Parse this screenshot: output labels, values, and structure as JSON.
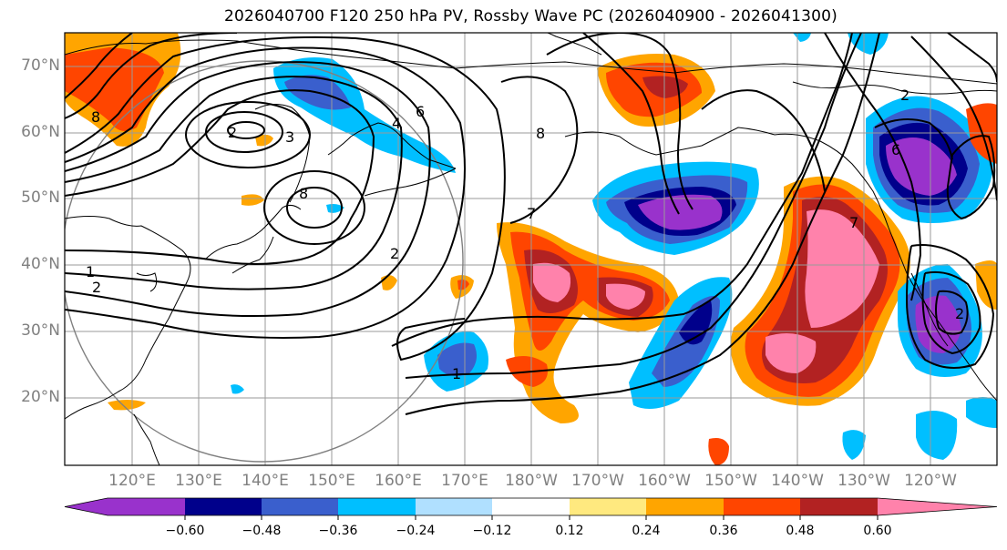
{
  "title": "2026040700 F120 250 hPa PV, Rossby Wave PC (2026040900 - 2026041300)",
  "lat_labels": [
    "70°N",
    "60°N",
    "50°N",
    "40°N",
    "30°N",
    "20°N"
  ],
  "lon_labels": [
    "120°E",
    "130°E",
    "140°E",
    "150°E",
    "160°E",
    "170°E",
    "180°W",
    "170°W",
    "160°W",
    "150°W",
    "140°W",
    "130°W",
    "120°W"
  ],
  "colorbar": {
    "ticks": [
      "−0.60",
      "−0.48",
      "−0.36",
      "−0.24",
      "−0.12",
      "0.12",
      "0.24",
      "0.36",
      "0.48",
      "0.60"
    ],
    "colors": [
      "#9932cc",
      "#00008b",
      "#3a5fcd",
      "#00bfff",
      "#b0e0ff",
      "#ffffff",
      "#ffe97f",
      "#ffa500",
      "#ff4500",
      "#b22222",
      "#ff82ab"
    ]
  },
  "contour_labels": [
    "8",
    "2",
    "3",
    "4",
    "6",
    "8",
    "8",
    "7",
    "1",
    "2",
    "2",
    "1",
    "2",
    "7",
    "6",
    "2"
  ]
}
